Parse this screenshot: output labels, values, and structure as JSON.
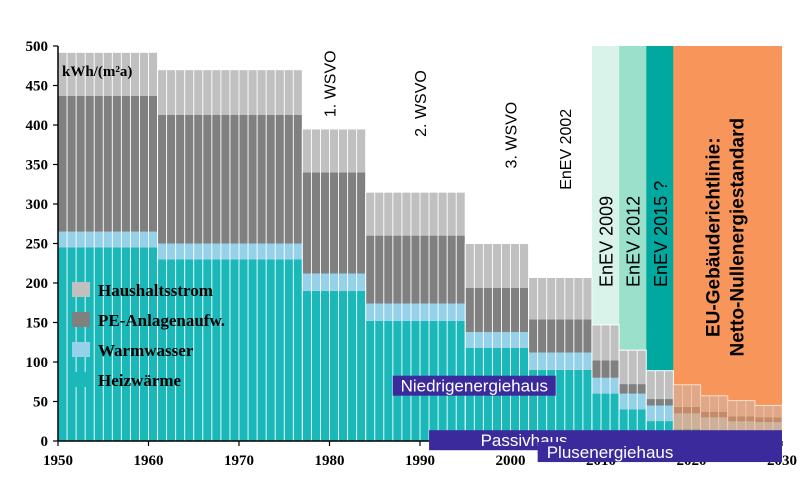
{
  "chart_data": {
    "type": "bar",
    "stacked": true,
    "unit_label": "kWh/(m²a)",
    "xlim": [
      1950,
      2030
    ],
    "ylim": [
      0,
      500
    ],
    "x_ticks": [
      1950,
      1960,
      1970,
      1980,
      1990,
      2000,
      2010,
      2020,
      2030
    ],
    "y_ticks": [
      0,
      50,
      100,
      150,
      200,
      250,
      300,
      350,
      400,
      450,
      500
    ],
    "grid": false,
    "legend_position": "bottom-left",
    "series": [
      {
        "key": "heiz",
        "name": "Heizwärme",
        "color": "#1ab8b8"
      },
      {
        "key": "ww",
        "name": "Warmwasser",
        "color": "#95d2ea"
      },
      {
        "key": "pe",
        "name": "PE-Anlagenaufw.",
        "color": "#808080"
      },
      {
        "key": "hs",
        "name": "Haushaltsstrom",
        "color": "#c0c0c0"
      }
    ],
    "periods": [
      {
        "start": 1950,
        "end": 1961,
        "heiz": 245,
        "ww": 20,
        "pe": 172,
        "hs": 55
      },
      {
        "start": 1961,
        "end": 1977,
        "heiz": 230,
        "ww": 20,
        "pe": 163,
        "hs": 57
      },
      {
        "start": 1977,
        "end": 1984,
        "heiz": 190,
        "ww": 22,
        "pe": 128,
        "hs": 55
      },
      {
        "start": 1984,
        "end": 1995,
        "heiz": 152,
        "ww": 22,
        "pe": 86,
        "hs": 55
      },
      {
        "start": 1995,
        "end": 2002,
        "heiz": 118,
        "ww": 20,
        "pe": 56,
        "hs": 56
      },
      {
        "start": 2002,
        "end": 2009,
        "heiz": 90,
        "ww": 22,
        "pe": 42,
        "hs": 53
      },
      {
        "start": 2009,
        "end": 2012,
        "heiz": 60,
        "ww": 20,
        "pe": 22,
        "hs": 45
      },
      {
        "start": 2012,
        "end": 2015,
        "heiz": 40,
        "ww": 20,
        "pe": 12,
        "hs": 43
      },
      {
        "start": 2015,
        "end": 2018,
        "heiz": 25,
        "ww": 20,
        "pe": 8,
        "hs": 36
      },
      {
        "start": 2018,
        "end": 2021,
        "heiz": 15,
        "ww": 20,
        "pe": 8,
        "hs": 28
      },
      {
        "start": 2021,
        "end": 2024,
        "heiz": 12,
        "ww": 18,
        "pe": 7,
        "hs": 20
      },
      {
        "start": 2024,
        "end": 2027,
        "heiz": 10,
        "ww": 15,
        "pe": 6,
        "hs": 20
      },
      {
        "start": 2027,
        "end": 2030,
        "heiz": 10,
        "ww": 14,
        "pe": 6,
        "hs": 15
      }
    ],
    "regulation_zones": [
      {
        "label": "EnEV 2009",
        "start": 2009,
        "end": 2012,
        "top": 500,
        "color": "#d9f2ea"
      },
      {
        "label": "EnEV 2012",
        "start": 2012,
        "end": 2015,
        "top": 500,
        "color": "#9be0ca"
      },
      {
        "label": "EnEV 2015 ?",
        "start": 2015,
        "end": 2018,
        "top": 500,
        "color": "#00a89f"
      },
      {
        "label": "EU-Gebäuderichtlinie:",
        "label2": "Netto-Nullenergiestandard",
        "start": 2018,
        "end": 2030,
        "top": 500,
        "color": "#f7955b"
      }
    ],
    "annotations": [
      {
        "label": "1. WSVO",
        "year": 1980,
        "value": 410
      },
      {
        "label": "2. WSVO",
        "year": 1990,
        "value": 385
      },
      {
        "label": "3. WSVO",
        "year": 2000,
        "value": 345
      },
      {
        "label": "EnEV 2002",
        "year": 2006,
        "value": 318
      }
    ],
    "standards": [
      {
        "label": "Niedrigenergiehaus",
        "start": 1987,
        "end": 2005,
        "value": 70
      },
      {
        "label": "Passivhaus",
        "start": 1991,
        "end": 2030,
        "value": 1
      },
      {
        "label": "Plusenergiehaus",
        "start": 2003,
        "end": 2030,
        "value": -14
      }
    ]
  }
}
